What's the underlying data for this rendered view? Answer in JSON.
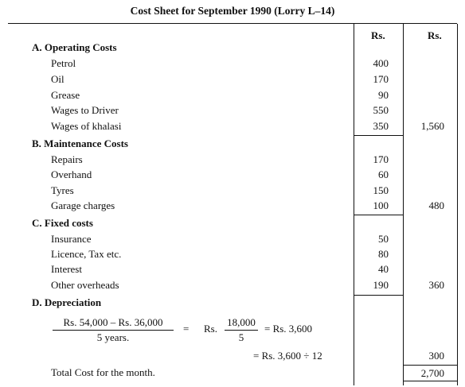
{
  "title": "Cost Sheet for September 1990 (Lorry L–14)",
  "headers": {
    "col1": "Rs.",
    "col2": "Rs."
  },
  "sections": [
    {
      "heading": "A. Operating Costs",
      "items": [
        {
          "label": "Petrol",
          "amount": "400"
        },
        {
          "label": "Oil",
          "amount": "170"
        },
        {
          "label": "Grease",
          "amount": "90"
        },
        {
          "label": "Wages to Driver",
          "amount": "550"
        },
        {
          "label": "Wages of khalasi",
          "amount": "350",
          "total": "1,560"
        }
      ]
    },
    {
      "heading": "B. Maintenance Costs",
      "items": [
        {
          "label": "Repairs",
          "amount": "170"
        },
        {
          "label": "Overhand",
          "amount": "60"
        },
        {
          "label": "Tyres",
          "amount": "150"
        },
        {
          "label": "Garage charges",
          "amount": "100",
          "total": "480"
        }
      ]
    },
    {
      "heading": "C. Fixed costs",
      "items": [
        {
          "label": "Insurance",
          "amount": "50"
        },
        {
          "label": "Licence, Tax etc.",
          "amount": "80"
        },
        {
          "label": "Interest",
          "amount": "40"
        },
        {
          "label": "Other overheads",
          "amount": "190",
          "total": "360"
        }
      ]
    },
    {
      "heading": "D. Depreciation"
    }
  ],
  "depreciation": {
    "frac1_num": "Rs. 54,000 – Rs. 36,000",
    "frac1_den": "5 years.",
    "eq1": "=",
    "rs": "Rs.",
    "frac2_num": "18,000",
    "frac2_den": "5",
    "eq2_result": "= Rs. 3,600",
    "line2": "= Rs. 3,600 ÷ 12",
    "line2_total": "300"
  },
  "total": {
    "label": "Total Cost for the month.",
    "value": "2,700"
  }
}
